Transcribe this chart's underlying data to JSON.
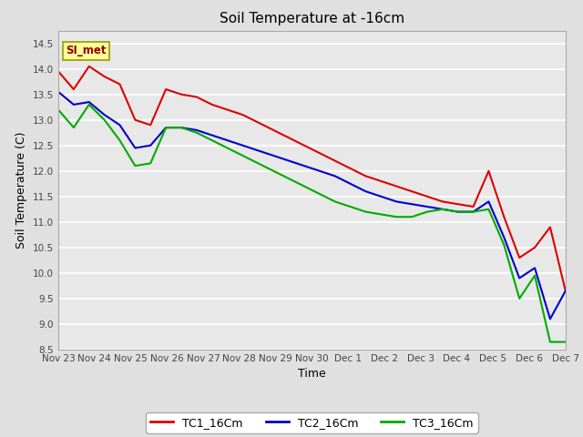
{
  "title": "Soil Temperature at -16cm",
  "xlabel": "Time",
  "ylabel": "Soil Temperature (C)",
  "ylim": [
    8.5,
    14.75
  ],
  "background_color": "#e0e0e0",
  "plot_bg_color": "#e8e8e8",
  "grid_color": "white",
  "annotation_text": "SI_met",
  "annotation_bg": "#ffff99",
  "annotation_border": "#999900",
  "annotation_text_color": "#990000",
  "x_tick_labels": [
    "Nov 23",
    "Nov 24",
    "Nov 25",
    "Nov 26",
    "Nov 27",
    "Nov 28",
    "Nov 29",
    "Nov 30",
    "Dec 1",
    "Dec 2",
    "Dec 3",
    "Dec 4",
    "Dec 5",
    "Dec 6",
    "Dec 7"
  ],
  "TC1_16Cm": [
    13.95,
    13.6,
    14.05,
    13.85,
    13.7,
    13.0,
    12.9,
    13.6,
    13.5,
    13.45,
    13.3,
    13.2,
    13.1,
    12.95,
    12.8,
    12.65,
    12.5,
    12.35,
    12.2,
    12.05,
    11.9,
    11.8,
    11.7,
    11.6,
    11.5,
    11.4,
    11.35,
    11.3,
    12.0,
    11.1,
    10.3,
    10.5,
    10.9,
    9.65
  ],
  "TC2_16Cm": [
    13.55,
    13.3,
    13.35,
    13.1,
    12.9,
    12.45,
    12.5,
    12.85,
    12.85,
    12.8,
    12.7,
    12.6,
    12.5,
    12.4,
    12.3,
    12.2,
    12.1,
    12.0,
    11.9,
    11.75,
    11.6,
    11.5,
    11.4,
    11.35,
    11.3,
    11.25,
    11.2,
    11.2,
    11.4,
    10.7,
    9.9,
    10.1,
    9.1,
    9.65
  ],
  "TC3_16Cm": [
    13.2,
    12.85,
    13.3,
    13.0,
    12.6,
    12.1,
    12.15,
    12.85,
    12.85,
    12.75,
    12.6,
    12.45,
    12.3,
    12.15,
    12.0,
    11.85,
    11.7,
    11.55,
    11.4,
    11.3,
    11.2,
    11.15,
    11.1,
    11.1,
    11.2,
    11.25,
    11.2,
    11.2,
    11.25,
    10.55,
    9.5,
    9.95,
    8.65,
    8.65
  ],
  "line_colors": [
    "#dd0000",
    "#0000cc",
    "#00aa00"
  ],
  "line_width": 1.5,
  "legend_labels": [
    "TC1_16Cm",
    "TC2_16Cm",
    "TC3_16Cm"
  ],
  "yticks": [
    8.5,
    9.0,
    9.5,
    10.0,
    10.5,
    11.0,
    11.5,
    12.0,
    12.5,
    13.0,
    13.5,
    14.0,
    14.5
  ]
}
